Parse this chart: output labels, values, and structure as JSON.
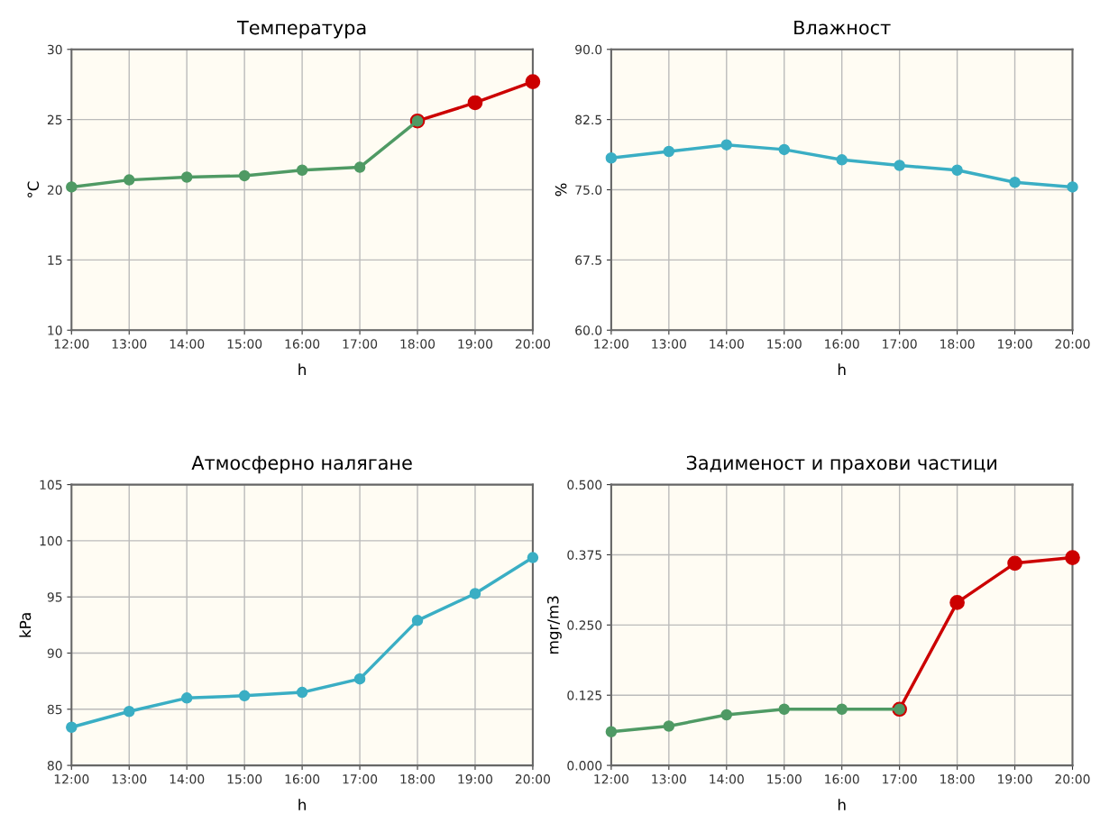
{
  "chart_data": [
    {
      "type": "line",
      "title": "Температура",
      "xlabel": "h",
      "ylabel": "°C",
      "categories": [
        "12:00",
        "13:00",
        "14:00",
        "15:00",
        "16:00",
        "17:00",
        "18:00",
        "19:00",
        "20:00"
      ],
      "series": [
        {
          "color": "#cc0000",
          "values": [
            null,
            null,
            null,
            null,
            null,
            null,
            24.9,
            26.2,
            27.7
          ]
        },
        {
          "color": "#4f9a64",
          "values": [
            20.2,
            20.7,
            20.9,
            21.0,
            21.4,
            21.6,
            24.9,
            null,
            null
          ]
        }
      ],
      "ylim": [
        10,
        30
      ],
      "yticks": [
        10,
        15,
        20,
        25,
        30
      ],
      "grid": true,
      "marker": "circle",
      "line_style": "solid"
    },
    {
      "type": "line",
      "title": "Влажност",
      "xlabel": "h",
      "ylabel": "%",
      "categories": [
        "12:00",
        "13:00",
        "14:00",
        "15:00",
        "16:00",
        "17:00",
        "18:00",
        "19:00",
        "20:00"
      ],
      "series": [
        {
          "color": "#3aaec4",
          "values": [
            78.4,
            79.1,
            79.8,
            79.3,
            78.2,
            77.6,
            77.1,
            75.8,
            75.3
          ]
        }
      ],
      "ylim": [
        60,
        90
      ],
      "yticks": [
        {
          "value": 60,
          "label": "60.0"
        },
        67.5,
        {
          "value": 75,
          "label": "75.0"
        },
        82.5,
        {
          "value": 90,
          "label": "90.0"
        }
      ],
      "grid": true,
      "marker": "circle",
      "line_style": "solid"
    },
    {
      "type": "line",
      "title": "Атмосферно налягане",
      "xlabel": "h",
      "ylabel": "kPa",
      "categories": [
        "12:00",
        "13:00",
        "14:00",
        "15:00",
        "16:00",
        "17:00",
        "18:00",
        "19:00",
        "20:00"
      ],
      "series": [
        {
          "color": "#3aaec4",
          "values": [
            83.4,
            84.8,
            86.0,
            86.2,
            86.5,
            87.7,
            92.9,
            95.3,
            98.5
          ]
        }
      ],
      "ylim": [
        80,
        105
      ],
      "yticks": [
        80,
        85,
        90,
        95,
        100,
        105
      ],
      "grid": true,
      "marker": "circle",
      "line_style": "solid"
    },
    {
      "type": "line",
      "title": "Задименост и прахови частици",
      "xlabel": "h",
      "ylabel": "mgr/m3",
      "categories": [
        "12:00",
        "13:00",
        "14:00",
        "15:00",
        "16:00",
        "17:00",
        "18:00",
        "19:00",
        "20:00"
      ],
      "series": [
        {
          "color": "#cc0000",
          "values": [
            null,
            null,
            null,
            null,
            null,
            0.1,
            0.29,
            0.36,
            0.37
          ]
        },
        {
          "color": "#4f9a64",
          "values": [
            0.06,
            0.07,
            0.09,
            0.1,
            0.1,
            0.1,
            null,
            null,
            null
          ]
        }
      ],
      "ylim": [
        0,
        0.5
      ],
      "yticks": [
        {
          "value": 0,
          "label": "0.000"
        },
        {
          "value": 0.125,
          "label": "0.125"
        },
        {
          "value": 0.25,
          "label": "0.250"
        },
        {
          "value": 0.375,
          "label": "0.375"
        },
        {
          "value": 0.5,
          "label": "0.500"
        }
      ],
      "grid": true,
      "marker": "circle",
      "line_style": "solid"
    }
  ]
}
